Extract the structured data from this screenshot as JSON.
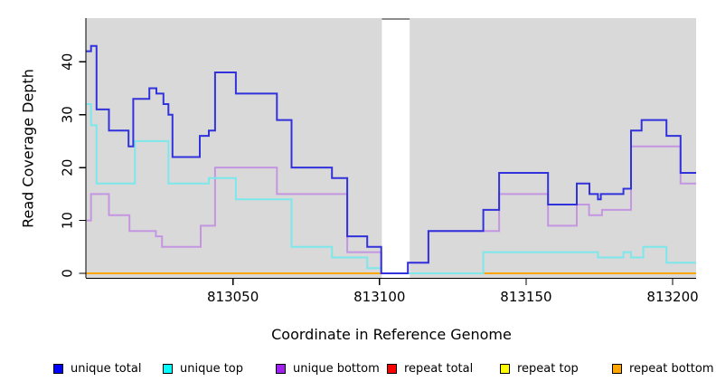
{
  "figure": {
    "panel_bg": "#d9d9d9",
    "outer_bg": "#ffffff",
    "axis_color": "#000000",
    "gap_band_color": "#ffffff",
    "gap_band_top_edge_color": "#8c8c8c"
  },
  "chart_data": {
    "type": "line",
    "step": true,
    "title": "",
    "xlabel": "Coordinate in Reference Genome",
    "ylabel": "Read Coverage Depth",
    "xlim": [
      813000,
      813208
    ],
    "ylim": [
      0,
      48
    ],
    "grid": false,
    "legend_position": "bottom",
    "x_ticks": [
      813050,
      813100,
      813150,
      813200
    ],
    "x_tick_labels": [
      "813050",
      "813100",
      "813150",
      "813200"
    ],
    "y_ticks": [
      0,
      10,
      20,
      30,
      40
    ],
    "y_tick_labels": [
      "0",
      "10",
      "20",
      "30",
      "40"
    ],
    "gap_region": {
      "x_start": 813100.8,
      "x_end": 813110.3
    },
    "series": [
      {
        "name": "repeat total",
        "color": "#dd0000",
        "legend_color": "#ff0000",
        "steps": [
          [
            813000,
            0
          ]
        ]
      },
      {
        "name": "repeat top",
        "color": "#ffee00",
        "legend_color": "#ffff00",
        "steps": [
          [
            813000,
            0
          ]
        ]
      },
      {
        "name": "repeat bottom",
        "color": "#ffa500",
        "legend_color": "#ffa500",
        "steps": [
          [
            813000,
            0
          ]
        ]
      },
      {
        "name": "unique bottom",
        "color": "#c496e2",
        "legend_color": "#a020f0",
        "steps": [
          [
            813000,
            10
          ],
          [
            813001.6,
            15
          ],
          [
            813007.7,
            11
          ],
          [
            813014.7,
            8
          ],
          [
            813023.7,
            7
          ],
          [
            813025.8,
            5
          ],
          [
            813039,
            9
          ],
          [
            813043.9,
            20
          ],
          [
            813065,
            15
          ],
          [
            813089,
            4
          ],
          [
            813100.6,
            0
          ],
          [
            813109.7,
            2
          ],
          [
            813116.7,
            8
          ],
          [
            813140.8,
            15
          ],
          [
            813157.5,
            9
          ],
          [
            813167.3,
            13
          ],
          [
            813171.5,
            11
          ],
          [
            813175.9,
            12
          ],
          [
            813185.8,
            24
          ],
          [
            813202.7,
            17
          ]
        ]
      },
      {
        "name": "unique top",
        "color": "#7ce8ec",
        "legend_color": "#00ffff",
        "steps": [
          [
            813000,
            32
          ],
          [
            813001.6,
            28
          ],
          [
            813003.5,
            17
          ],
          [
            813016.6,
            25
          ],
          [
            813028,
            17
          ],
          [
            813041.8,
            18
          ],
          [
            813051,
            14
          ],
          [
            813070,
            5
          ],
          [
            813083.8,
            3
          ],
          [
            813095.8,
            1
          ],
          [
            813100.6,
            0
          ],
          [
            813135.4,
            4
          ],
          [
            813174.5,
            3
          ],
          [
            813183.2,
            4
          ],
          [
            813185.8,
            3
          ],
          [
            813190,
            5
          ],
          [
            813197.9,
            2
          ]
        ]
      },
      {
        "name": "unique total",
        "color": "#3232dc",
        "legend_color": "#0000ff",
        "steps": [
          [
            813000,
            42
          ],
          [
            813001.6,
            43
          ],
          [
            813003.5,
            31
          ],
          [
            813007.7,
            27
          ],
          [
            813014.4,
            24
          ],
          [
            813016,
            33
          ],
          [
            813021.5,
            35
          ],
          [
            813023.9,
            34
          ],
          [
            813026.3,
            32
          ],
          [
            813028,
            30
          ],
          [
            813029.4,
            22
          ],
          [
            813038.7,
            26
          ],
          [
            813041.8,
            27
          ],
          [
            813043.9,
            38
          ],
          [
            813051,
            34
          ],
          [
            813065,
            29
          ],
          [
            813070,
            20
          ],
          [
            813083.8,
            18
          ],
          [
            813089,
            7
          ],
          [
            813095.8,
            5
          ],
          [
            813100.6,
            0
          ],
          [
            813109.7,
            2
          ],
          [
            813116.7,
            8
          ],
          [
            813135.4,
            12
          ],
          [
            813140.8,
            19
          ],
          [
            813157.5,
            13
          ],
          [
            813167.3,
            17
          ],
          [
            813171.6,
            15
          ],
          [
            813174.5,
            14
          ],
          [
            813175.5,
            15
          ],
          [
            813183.2,
            16
          ],
          [
            813185.8,
            27
          ],
          [
            813189.4,
            29
          ],
          [
            813197.9,
            26
          ],
          [
            813202.7,
            19
          ]
        ]
      }
    ]
  },
  "legend": {
    "items": [
      {
        "label": "unique total",
        "swatch_color": "#0000ff"
      },
      {
        "label": "unique top",
        "swatch_color": "#00ffff"
      },
      {
        "label": "unique bottom",
        "swatch_color": "#a020f0"
      },
      {
        "label": "repeat total",
        "swatch_color": "#ff0000"
      },
      {
        "label": "repeat top",
        "swatch_color": "#ffff00"
      },
      {
        "label": "repeat bottom",
        "swatch_color": "#ffa500"
      }
    ]
  }
}
